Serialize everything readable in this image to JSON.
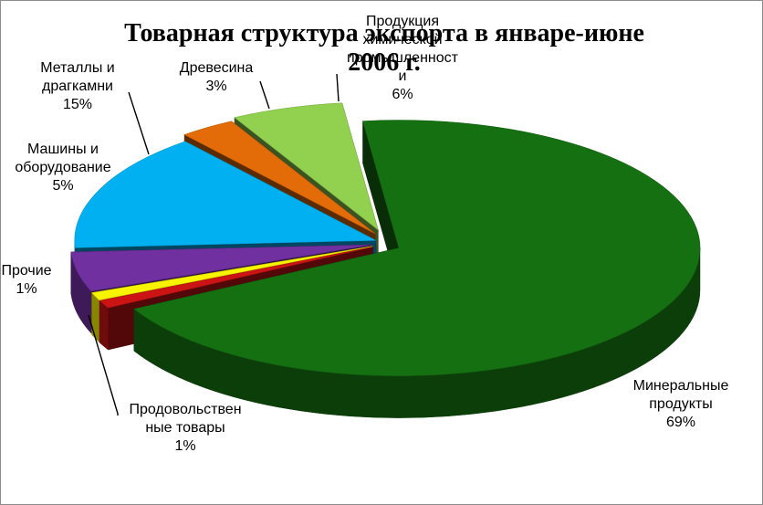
{
  "chart_data": {
    "type": "pie",
    "title_line1": "Товарная структура экспорта в январе-июне",
    "title_line2": "2006 г.",
    "slices": [
      {
        "name": "Минеральные продукты",
        "value": 69,
        "value_label": "69%",
        "color": "#157012",
        "label_lines": [
          "Минеральные",
          "продукты",
          "69%"
        ]
      },
      {
        "name": "Продовольственные товары",
        "value": 1,
        "value_label": "1%",
        "color": "#cc1414",
        "label_lines": [
          "Продовольствен",
          "ные товары",
          "1%"
        ]
      },
      {
        "name": "Прочие",
        "value": 1,
        "value_label": "1%",
        "color": "#f8f400",
        "label_lines": [
          "Прочие",
          "1%"
        ]
      },
      {
        "name": "Машины и оборудование",
        "value": 5,
        "value_label": "5%",
        "color": "#7030a0",
        "label_lines": [
          "Машины и",
          "оборудование",
          "5%"
        ]
      },
      {
        "name": "Металлы и драгкамни",
        "value": 15,
        "value_label": "15%",
        "color": "#00b0f0",
        "label_lines": [
          "Металлы и",
          "драгкамни",
          "15%"
        ]
      },
      {
        "name": "Древесина",
        "value": 3,
        "value_label": "3%",
        "color": "#e36c09",
        "label_lines": [
          "Древесина",
          "3%"
        ]
      },
      {
        "name": "Продукция химической промышленности",
        "value": 6,
        "value_label": "6%",
        "color": "#92d050",
        "label_lines": [
          "Продукция",
          "химической",
          "промышленност",
          "и",
          "6%"
        ]
      }
    ],
    "legend": "none",
    "style": "3d-exploded"
  }
}
